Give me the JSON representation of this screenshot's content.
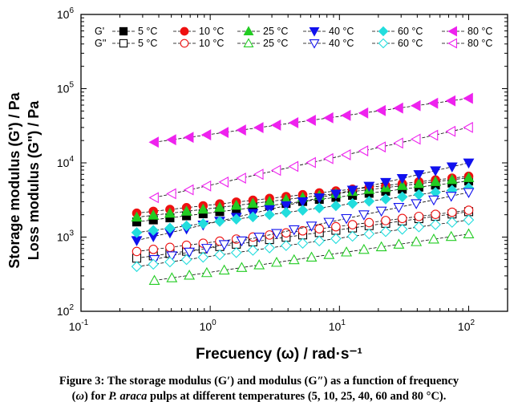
{
  "chart_data": {
    "type": "scatter",
    "xlabel": "Frecuency (ω) / rad·s⁻¹",
    "ylabel_lines": [
      "Storage modulus (G') / Pa",
      "Loss modulus (G\") / Pa"
    ],
    "xscale": "log",
    "yscale": "log",
    "xlim": [
      0.1,
      200
    ],
    "ylim": [
      100,
      1000000
    ],
    "x_ticks": [
      {
        "value": 0.1,
        "base": "10",
        "exp": "-1"
      },
      {
        "value": 1,
        "base": "10",
        "exp": "0"
      },
      {
        "value": 10,
        "base": "10",
        "exp": "1"
      },
      {
        "value": 100,
        "base": "10",
        "exp": "2"
      }
    ],
    "y_ticks": [
      {
        "value": 100,
        "base": "10",
        "exp": "2"
      },
      {
        "value": 1000,
        "base": "10",
        "exp": "3"
      },
      {
        "value": 10000,
        "base": "10",
        "exp": "4"
      },
      {
        "value": 100000,
        "base": "10",
        "exp": "5"
      },
      {
        "value": 1000000,
        "base": "10",
        "exp": "6"
      }
    ],
    "grid": false,
    "legend": {
      "placement": "top",
      "row_labels": [
        "G'",
        "G''"
      ],
      "entries": [
        "5 °C",
        "10 °C",
        "25 °C",
        "40 °C",
        "60 °C",
        "80 °C"
      ]
    },
    "series": [
      {
        "name": "G' 5 °C",
        "marker": "square",
        "filled": true,
        "color": "#000000",
        "x_start": 0.27,
        "x_end": 100,
        "y_start": 1600,
        "y_end": 5700,
        "points": 21
      },
      {
        "name": "G' 10 °C",
        "marker": "circle",
        "filled": true,
        "color": "#ee1111",
        "x_start": 0.27,
        "x_end": 100,
        "y_start": 2100,
        "y_end": 6600,
        "points": 21
      },
      {
        "name": "G' 25 °C",
        "marker": "triangle-up",
        "filled": true,
        "color": "#22cc22",
        "x_start": 0.27,
        "x_end": 100,
        "y_start": 1850,
        "y_end": 6300,
        "points": 21
      },
      {
        "name": "G' 40 °C",
        "marker": "triangle-down",
        "filled": true,
        "color": "#1111ee",
        "x_start": 0.27,
        "x_end": 100,
        "y_start": 900,
        "y_end": 10000,
        "points": 21
      },
      {
        "name": "G' 60 °C",
        "marker": "diamond",
        "filled": true,
        "color": "#22dddd",
        "x_start": 0.27,
        "x_end": 100,
        "y_start": 1150,
        "y_end": 4600,
        "points": 21
      },
      {
        "name": "G' 80 °C",
        "marker": "triangle-left",
        "filled": true,
        "color": "#ee22ee",
        "x_start": 0.37,
        "x_end": 100,
        "y_start": 19000,
        "y_end": 74000,
        "points": 19
      },
      {
        "name": "G'' 5 °C",
        "marker": "square",
        "filled": false,
        "color": "#000000",
        "x_start": 0.27,
        "x_end": 100,
        "y_start": 520,
        "y_end": 2200,
        "points": 21
      },
      {
        "name": "G'' 10 °C",
        "marker": "circle",
        "filled": false,
        "color": "#ee1111",
        "x_start": 0.27,
        "x_end": 100,
        "y_start": 640,
        "y_end": 2300,
        "points": 21
      },
      {
        "name": "G'' 25 °C",
        "marker": "triangle-up",
        "filled": false,
        "color": "#22cc22",
        "x_start": 0.37,
        "x_end": 100,
        "y_start": 260,
        "y_end": 1100,
        "points": 19
      },
      {
        "name": "G'' 40 °C",
        "marker": "triangle-down",
        "filled": false,
        "color": "#1111ee",
        "x_start": 0.37,
        "x_end": 100,
        "y_start": 500,
        "y_end": 4000,
        "points": 19
      },
      {
        "name": "G'' 60 °C",
        "marker": "diamond",
        "filled": false,
        "color": "#22dddd",
        "x_start": 0.27,
        "x_end": 100,
        "y_start": 400,
        "y_end": 1700,
        "points": 21
      },
      {
        "name": "G'' 80 °C",
        "marker": "triangle-left",
        "filled": false,
        "color": "#ee22ee",
        "x_start": 0.37,
        "x_end": 100,
        "y_start": 3400,
        "y_end": 30000,
        "points": 19
      }
    ]
  },
  "caption": {
    "lead": "Figure 3: The storage modulus (G′) and modulus (G″) as a function of frequency",
    "omega": "ω",
    "mid": " for ",
    "species": "P. araca",
    "tail": " pulps at different temperatures (5, 10, 25, 40, 60 and 80 °C)."
  }
}
